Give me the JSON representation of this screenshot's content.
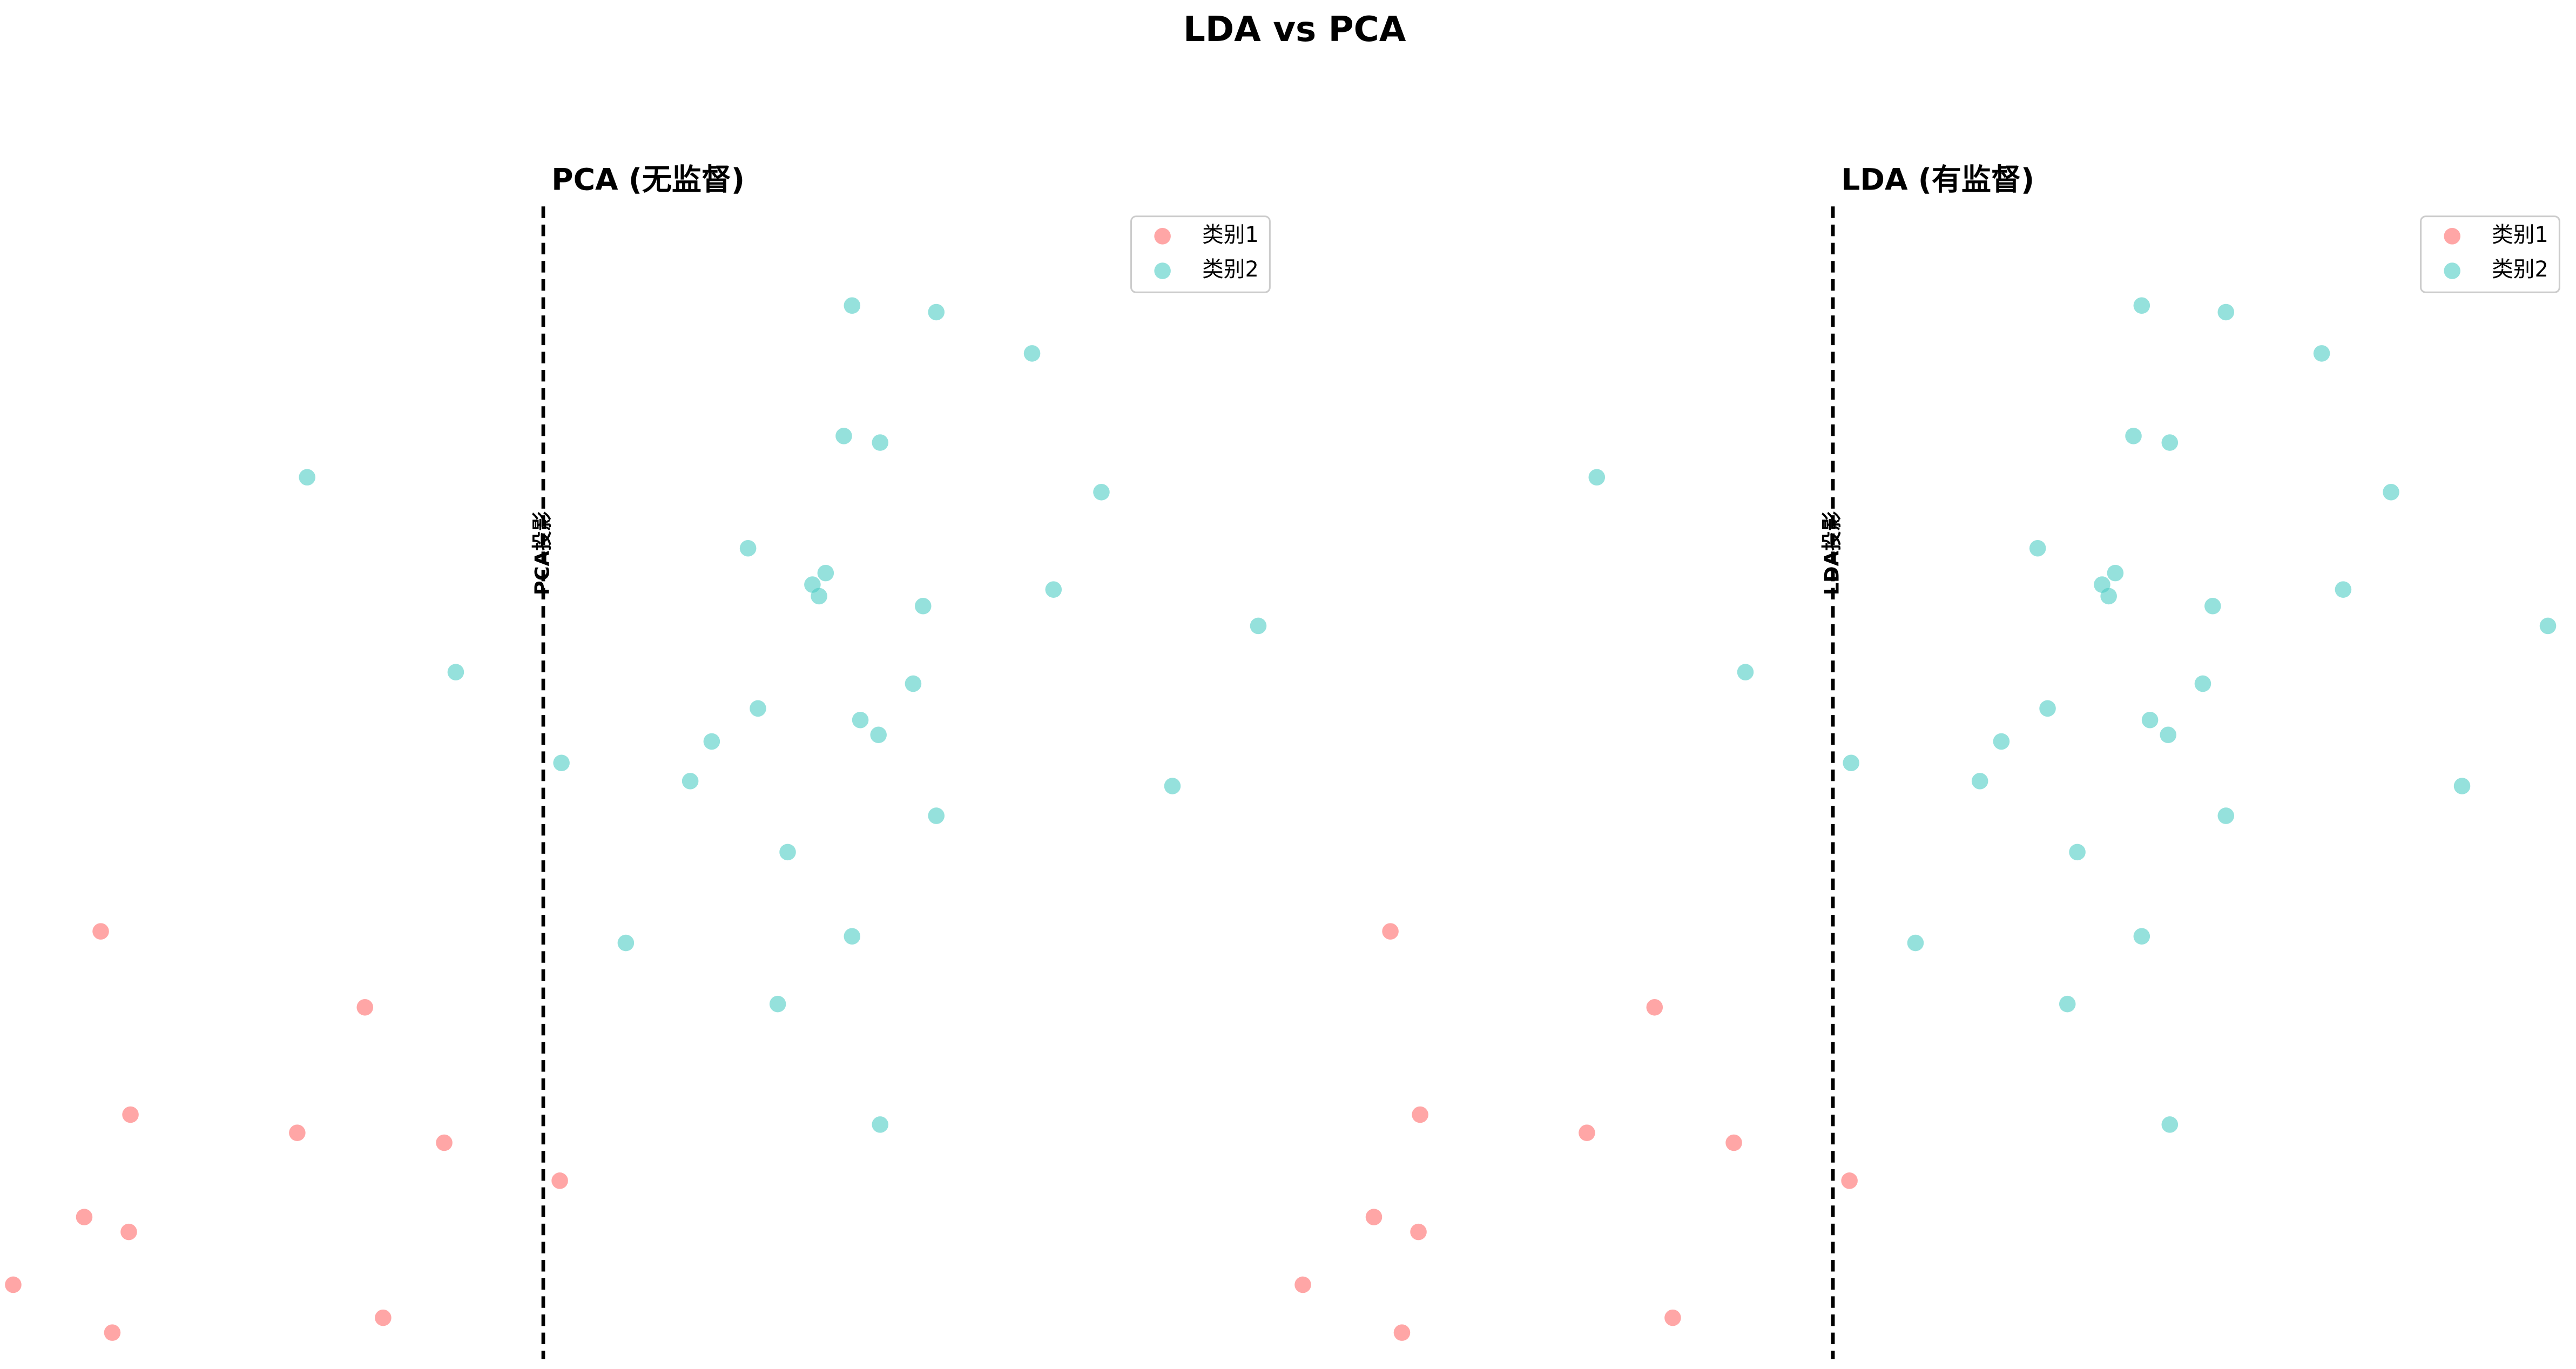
{
  "title": "LDA vs PCA",
  "chart_data": [
    {
      "type": "scatter",
      "title": "PCA (无监督)",
      "legend": "upper right",
      "xlim": [
        -3.29,
        4.4
      ],
      "ylim": [
        -3.49,
        3.49
      ],
      "vline": {
        "x": 0,
        "label": "PCA投影"
      },
      "series": [
        {
          "name": "类别1",
          "color": "#ff6b6b",
          "x": [
            -2.68,
            -1.08,
            -2.5,
            -1.49,
            -0.6,
            0.1,
            -2.78,
            -2.51,
            -3.21,
            -0.97,
            -2.61
          ],
          "values": [
            -0.9,
            -1.36,
            -2.01,
            -2.12,
            -2.18,
            -2.41,
            -2.63,
            -2.72,
            -3.04,
            -3.24,
            -3.33
          ]
        },
        {
          "name": "类别2",
          "color": "#4ecdc4",
          "x": [
            1.87,
            2.38,
            2.96,
            1.82,
            2.04,
            -1.43,
            3.38,
            1.24,
            1.71,
            1.63,
            1.67,
            3.09,
            2.3,
            4.33,
            -0.53,
            2.24,
            1.3,
            1.92,
            1.02,
            2.03,
            0.11,
            0.89,
            3.81,
            2.38,
            1.48,
            0.5,
            1.87,
            1.42,
            2.04
          ],
          "values": [
            2.89,
            2.85,
            2.6,
            2.1,
            2.06,
            1.85,
            1.76,
            1.42,
            1.27,
            1.2,
            1.13,
            1.17,
            1.07,
            0.95,
            0.67,
            0.6,
            0.45,
            0.38,
            0.25,
            0.29,
            0.12,
            0.01,
            -0.02,
            -0.2,
            -0.42,
            -0.97,
            -0.93,
            -1.34,
            -2.07
          ]
        }
      ]
    },
    {
      "type": "scatter",
      "title": "LDA (有监督)",
      "legend": "upper right",
      "xlim": [
        -3.29,
        4.4
      ],
      "ylim": [
        -3.49,
        3.49
      ],
      "vline": {
        "x": 0,
        "label": "LDA投影"
      },
      "series": [
        {
          "name": "类别1",
          "color": "#ff6b6b",
          "x": [
            -2.68,
            -1.08,
            -2.5,
            -1.49,
            -0.6,
            0.1,
            -2.78,
            -2.51,
            -3.21,
            -0.97,
            -2.61
          ],
          "values": [
            -0.9,
            -1.36,
            -2.01,
            -2.12,
            -2.18,
            -2.41,
            -2.63,
            -2.72,
            -3.04,
            -3.24,
            -3.33
          ]
        },
        {
          "name": "类别2",
          "color": "#4ecdc4",
          "x": [
            1.87,
            2.38,
            2.96,
            1.82,
            2.04,
            -1.43,
            3.38,
            1.24,
            1.71,
            1.63,
            1.67,
            3.09,
            2.3,
            4.33,
            -0.53,
            2.24,
            1.3,
            1.92,
            1.02,
            2.03,
            0.11,
            0.89,
            3.81,
            2.38,
            1.48,
            0.5,
            1.87,
            1.42,
            2.04
          ],
          "values": [
            2.89,
            2.85,
            2.6,
            2.1,
            2.06,
            1.85,
            1.76,
            1.42,
            1.27,
            1.2,
            1.13,
            1.17,
            1.07,
            0.95,
            0.67,
            0.6,
            0.45,
            0.38,
            0.25,
            0.29,
            0.12,
            0.01,
            -0.02,
            -0.2,
            -0.42,
            -0.97,
            -0.93,
            -1.34,
            -2.07
          ]
        }
      ]
    }
  ]
}
